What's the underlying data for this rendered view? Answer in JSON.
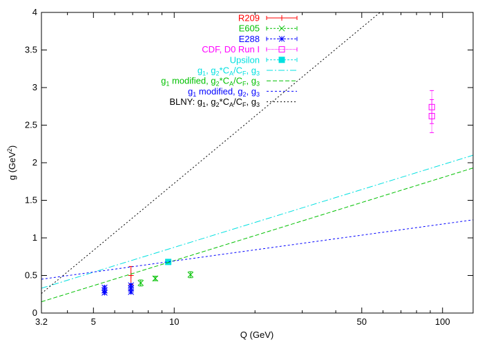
{
  "chart_data": {
    "type": "line",
    "xlabel": "Q (GeV)",
    "ylabel": "g (GeV²)",
    "xscale": "log",
    "xlim": [
      3.2,
      130
    ],
    "ylim": [
      0,
      4
    ],
    "x_ticks": [
      {
        "value": 3.2,
        "label": "3.2"
      },
      {
        "value": 5,
        "label": "5"
      },
      {
        "value": 10,
        "label": "10"
      },
      {
        "value": 50,
        "label": "50"
      },
      {
        "value": 100,
        "label": "100"
      }
    ],
    "y_ticks": [
      {
        "value": 0,
        "label": "0"
      },
      {
        "value": 0.5,
        "label": "0.5"
      },
      {
        "value": 1,
        "label": "1"
      },
      {
        "value": 1.5,
        "label": "1.5"
      },
      {
        "value": 2,
        "label": "2"
      },
      {
        "value": 2.5,
        "label": "2.5"
      },
      {
        "value": 3,
        "label": "3"
      },
      {
        "value": 3.5,
        "label": "3.5"
      },
      {
        "value": 4,
        "label": "4"
      }
    ],
    "grid": false,
    "legend_position": "top-center",
    "series": [
      {
        "name": "R209",
        "kind": "points",
        "marker": "plus",
        "color": "#ff0000",
        "points": [
          {
            "x": 6.9,
            "y": 0.5,
            "err": 0.12
          }
        ]
      },
      {
        "name": "E605",
        "kind": "points",
        "marker": "cross",
        "color": "#00c000",
        "points": [
          {
            "x": 7.5,
            "y": 0.4,
            "err": 0.04
          },
          {
            "x": 8.5,
            "y": 0.46,
            "err": 0.03
          },
          {
            "x": 11.5,
            "y": 0.51,
            "err": 0.04
          }
        ]
      },
      {
        "name": "E288",
        "kind": "points",
        "marker": "star",
        "color": "#0000ff",
        "points": [
          {
            "x": 5.5,
            "y": 0.34,
            "err": 0.02
          },
          {
            "x": 5.5,
            "y": 0.3,
            "err": 0.02
          },
          {
            "x": 5.5,
            "y": 0.27,
            "err": 0.02
          },
          {
            "x": 6.9,
            "y": 0.37,
            "err": 0.02
          },
          {
            "x": 6.9,
            "y": 0.33,
            "err": 0.02
          },
          {
            "x": 6.9,
            "y": 0.28,
            "err": 0.02
          }
        ]
      },
      {
        "name": "CDF, D0 Run I",
        "kind": "points",
        "marker": "open-square",
        "color": "#ff00ff",
        "points": [
          {
            "x": 91.2,
            "y": 2.74,
            "err": 0.22
          },
          {
            "x": 91.2,
            "y": 2.62,
            "err": 0.22
          }
        ]
      },
      {
        "name": "Upsilon",
        "kind": "points",
        "marker": "filled-square",
        "color": "#00e0e0",
        "points": [
          {
            "x": 9.5,
            "y": 0.68,
            "err": 0.02
          }
        ]
      },
      {
        "name": "g<sub>1</sub>, g<sub>2</sub>*C<sub>A</sub>/C<sub>F</sub>, g<sub>3</sub>",
        "kind": "line",
        "dash": "9,3,2,3",
        "color": "#00e0e0",
        "points": [
          {
            "x": 3.2,
            "y": 0.33
          },
          {
            "x": 130,
            "y": 2.1
          }
        ]
      },
      {
        "name": "g<sub>1</sub> modified, g<sub>2</sub>*C<sub>A</sub>/C<sub>F</sub>, g<sub>3</sub>",
        "kind": "line",
        "dash": "6,3",
        "color": "#00c000",
        "points": [
          {
            "x": 3.2,
            "y": 0.15
          },
          {
            "x": 130,
            "y": 1.93
          }
        ]
      },
      {
        "name": "g<sub>1</sub> modified, g<sub>2</sub>, g<sub>3</sub>",
        "kind": "line",
        "dash": "3,3",
        "color": "#0000ff",
        "points": [
          {
            "x": 3.2,
            "y": 0.45
          },
          {
            "x": 130,
            "y": 1.24
          }
        ]
      },
      {
        "name": "BLNY: g<sub>1</sub>, g<sub>2</sub>*C<sub>A</sub>/C<sub>F</sub>, g<sub>3</sub>",
        "kind": "line",
        "dash": "2,3",
        "color": "#000000",
        "points": [
          {
            "x": 3.2,
            "y": 0.26
          },
          {
            "x": 58.5,
            "y": 4.0
          }
        ]
      }
    ]
  }
}
